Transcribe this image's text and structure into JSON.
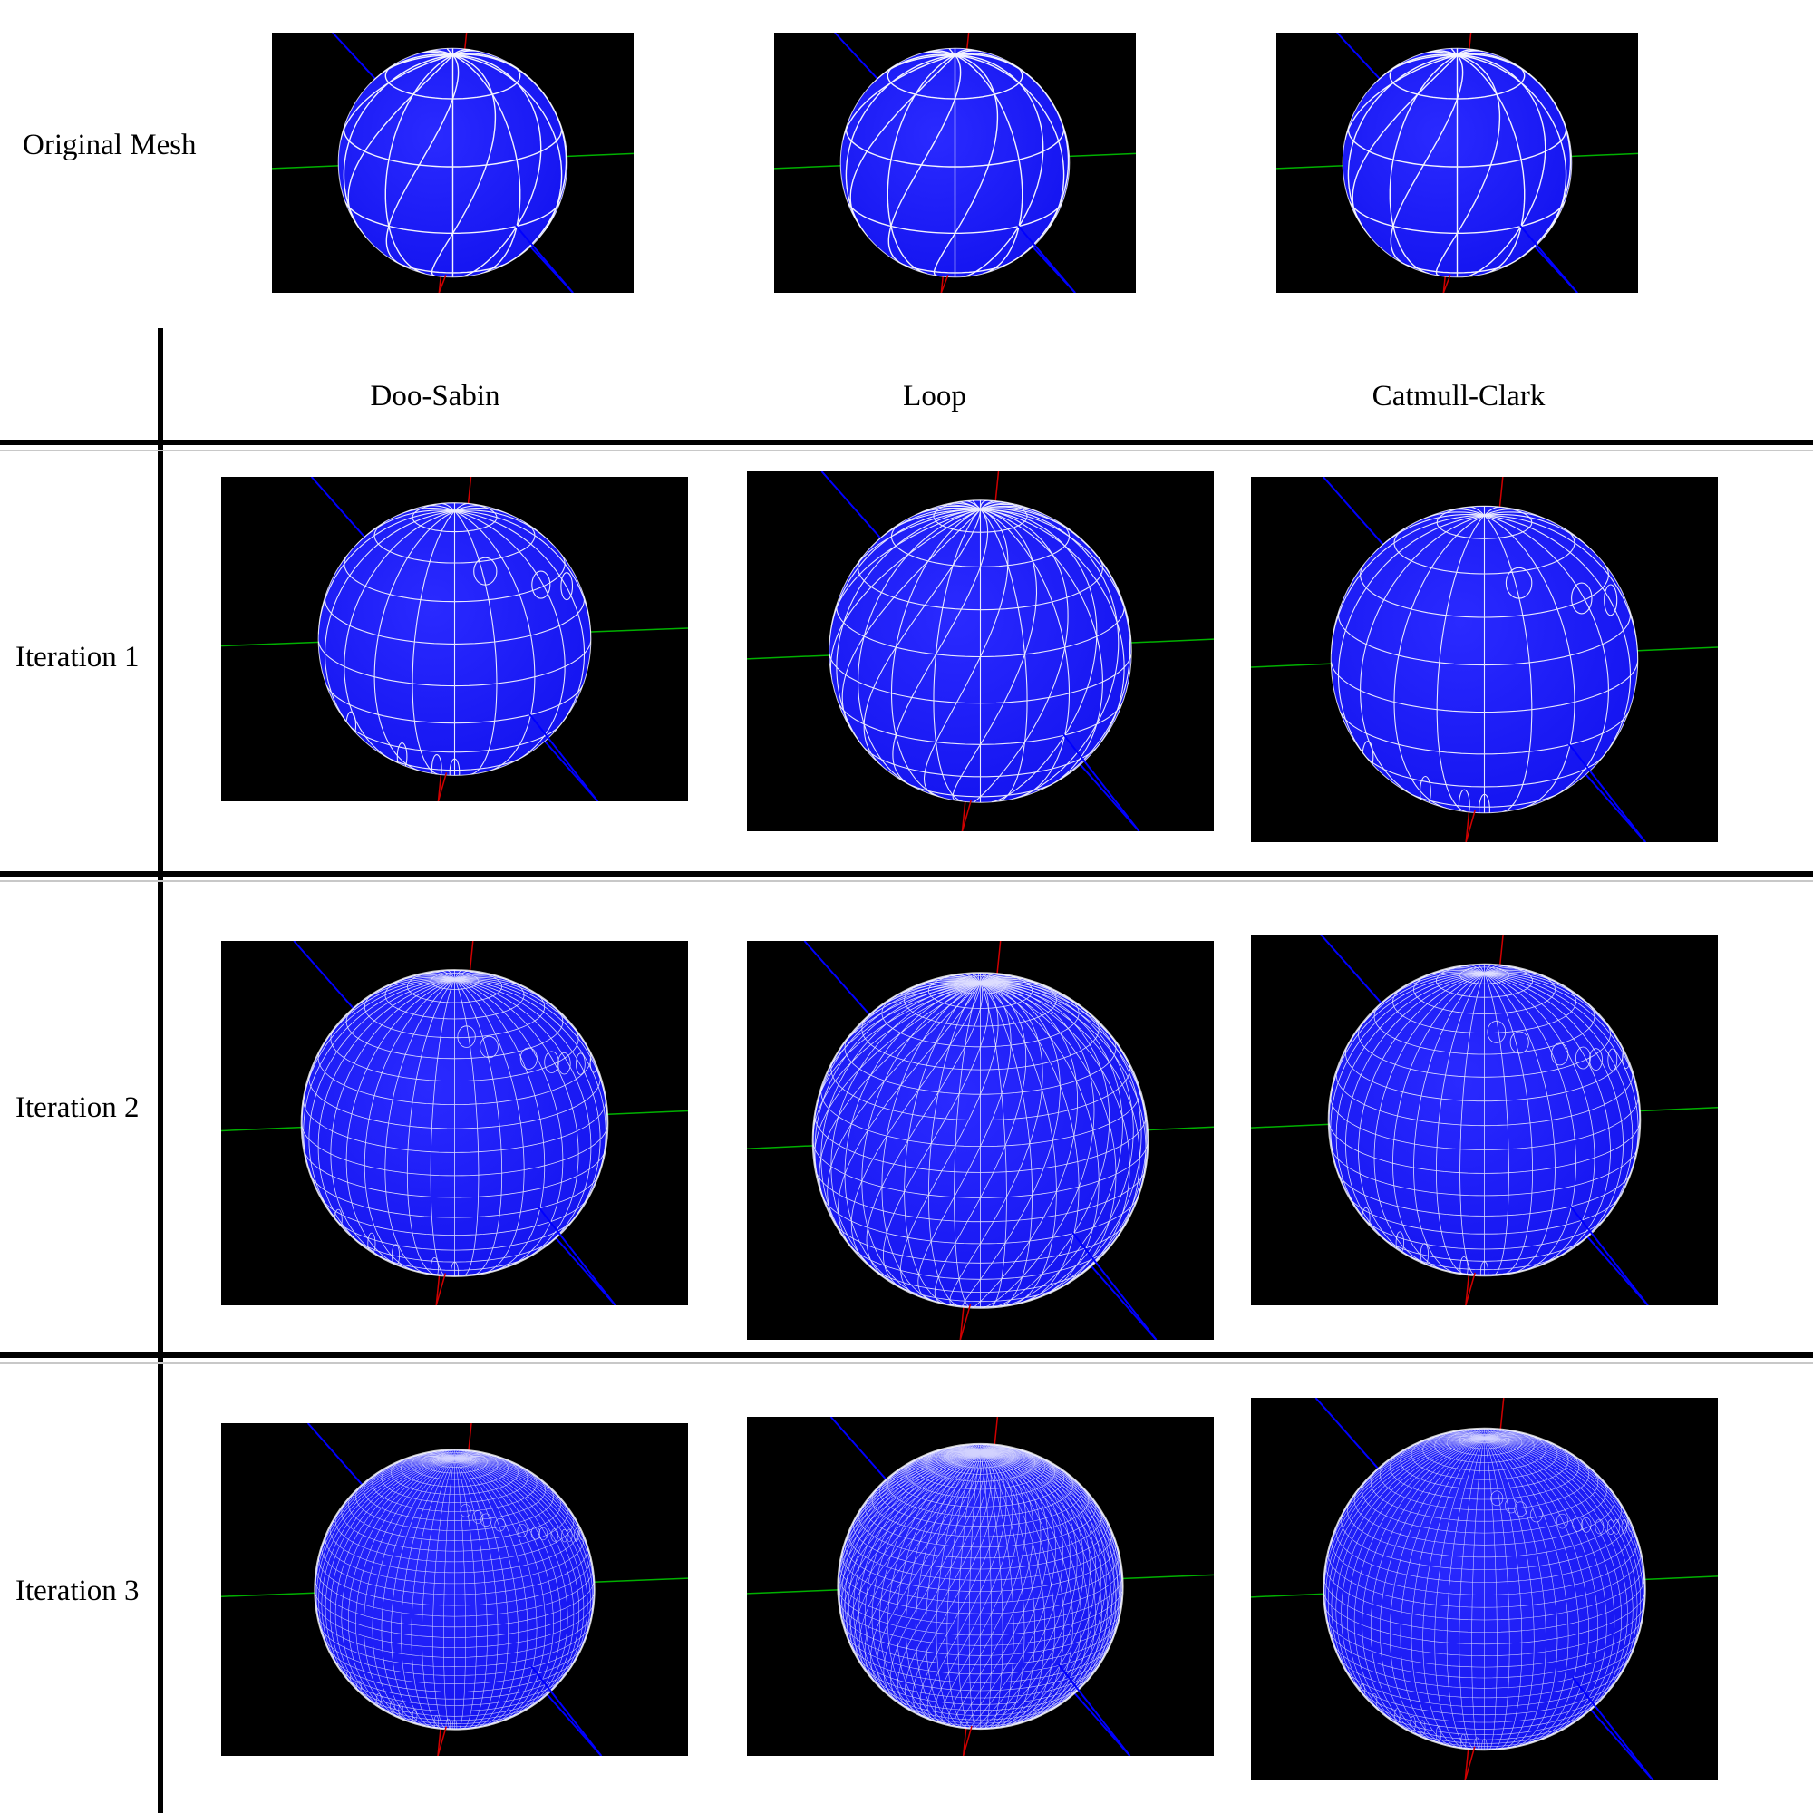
{
  "row_labels": {
    "original": "Original Mesh",
    "iter1": "Iteration 1",
    "iter2": "Iteration 2",
    "iter3": "Iteration 3"
  },
  "column_headers": {
    "doo_sabin": "Doo-Sabin",
    "loop": "Loop",
    "catmull_clark": "Catmull-Clark"
  },
  "colors": {
    "sphere_fill": "#1414f0",
    "wire": "#ffffff",
    "background": "#000000",
    "axis_x": "#00b000",
    "axis_y": "#d00000",
    "axis_z": "#0000ff"
  }
}
